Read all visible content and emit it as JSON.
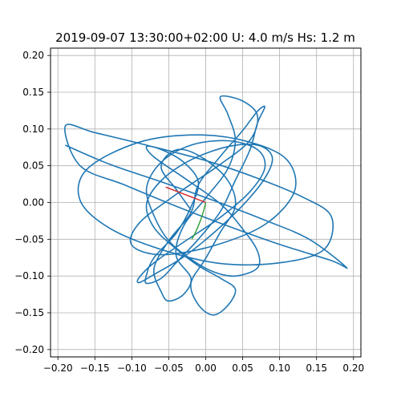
{
  "chart_data": {
    "type": "line",
    "title": "2019-09-07 13:30:00+02:00 U: 4.0 m/s Hs: 1.2 m",
    "xlim": [
      -0.21,
      0.21
    ],
    "ylim": [
      -0.21,
      0.21
    ],
    "grid": true,
    "x_ticks": [
      -0.2,
      -0.15,
      -0.1,
      -0.05,
      0.0,
      0.05,
      0.1,
      0.15,
      0.2
    ],
    "y_ticks": [
      -0.2,
      -0.15,
      -0.1,
      -0.05,
      0.0,
      0.05,
      0.1,
      0.15,
      0.2
    ],
    "x_tick_labels": [
      "−0.20",
      "−0.15",
      "−0.10",
      "−0.05",
      "0.00",
      "0.05",
      "0.10",
      "0.15",
      "0.20"
    ],
    "y_tick_labels": [
      "−0.20",
      "−0.15",
      "−0.10",
      "−0.05",
      "0.00",
      "0.05",
      "0.10",
      "0.15",
      "0.20"
    ],
    "series": [
      {
        "color": "#1f77b4",
        "x": [
          -0.19,
          -0.13,
          -0.06,
          0.01,
          0.08,
          0.14,
          0.19,
          0.17,
          0.1,
          0.03,
          -0.04,
          -0.11,
          -0.17,
          -0.19,
          -0.15,
          -0.08,
          0.0,
          0.07,
          0.13,
          0.17,
          0.16,
          0.1,
          0.02,
          -0.06,
          -0.13,
          -0.17,
          -0.16,
          -0.09,
          -0.01,
          0.06,
          0.11,
          0.12,
          0.08,
          0.01,
          -0.06,
          -0.1,
          -0.09,
          -0.04,
          0.02,
          0.06,
          0.07,
          0.05,
          0.02,
          0.03,
          0.04,
          0.03,
          0.0,
          -0.03,
          -0.04,
          -0.02,
          -0.03,
          -0.05,
          -0.06,
          -0.07,
          -0.05,
          -0.02,
          -0.01,
          0.02,
          0.05,
          0.07,
          0.08,
          0.07,
          0.06,
          0.04,
          0.02,
          -0.01,
          -0.04,
          -0.06,
          -0.08,
          -0.08,
          -0.07,
          -0.04,
          -0.02,
          -0.01,
          -0.03,
          -0.06,
          -0.08,
          -0.07,
          -0.03,
          0.02,
          0.05,
          0.07,
          0.07,
          0.04,
          0.01,
          -0.02,
          -0.05,
          -0.07,
          -0.08,
          -0.06,
          -0.02,
          0.03,
          0.07,
          0.08,
          0.06,
          0.02,
          -0.03,
          -0.07,
          -0.09,
          -0.09,
          -0.07,
          -0.03,
          0.01,
          0.05,
          0.08,
          0.09,
          0.07,
          0.03,
          -0.02,
          -0.06,
          -0.08,
          -0.07,
          -0.04,
          -0.01,
          0.02,
          0.04,
          0.03,
          0.01,
          -0.01,
          -0.02,
          0.0,
          0.02,
          0.04,
          0.03,
          0.0,
          -0.03,
          -0.05,
          -0.06,
          -0.04,
          -0.02
        ],
        "y": [
          0.078,
          0.052,
          0.028,
          0.003,
          -0.024,
          -0.05,
          -0.088,
          -0.079,
          -0.057,
          -0.032,
          -0.005,
          0.024,
          0.05,
          0.104,
          0.095,
          0.078,
          0.057,
          0.033,
          0.008,
          -0.019,
          -0.064,
          -0.082,
          -0.083,
          -0.064,
          -0.035,
          0.003,
          0.046,
          0.082,
          0.092,
          0.082,
          0.058,
          0.015,
          -0.03,
          -0.059,
          -0.071,
          -0.058,
          -0.028,
          0.011,
          0.052,
          0.085,
          0.118,
          0.138,
          0.144,
          0.12,
          0.085,
          0.046,
          0.006,
          -0.032,
          -0.072,
          -0.103,
          -0.125,
          -0.134,
          -0.122,
          -0.09,
          -0.052,
          -0.014,
          0.024,
          0.063,
          0.098,
          0.124,
          0.13,
          0.108,
          0.072,
          0.03,
          -0.012,
          -0.05,
          -0.082,
          -0.103,
          -0.11,
          -0.098,
          -0.075,
          -0.042,
          -0.006,
          0.028,
          0.055,
          0.072,
          0.076,
          0.062,
          0.034,
          -0.002,
          -0.036,
          -0.066,
          -0.089,
          -0.1,
          -0.094,
          -0.077,
          -0.052,
          -0.018,
          0.02,
          0.055,
          0.078,
          0.084,
          0.072,
          0.047,
          0.015,
          -0.02,
          -0.054,
          -0.082,
          -0.102,
          -0.109,
          -0.098,
          -0.074,
          -0.042,
          -0.004,
          0.033,
          0.062,
          0.078,
          0.076,
          0.058,
          0.03,
          -0.002,
          -0.034,
          -0.063,
          -0.086,
          -0.103,
          -0.118,
          -0.14,
          -0.153,
          -0.139,
          -0.11,
          -0.076,
          -0.04,
          -0.005,
          0.03,
          0.058,
          0.072,
          0.066,
          0.046,
          0.018,
          -0.01
        ]
      },
      {
        "color": "#d62728",
        "x": [
          0.0,
          -0.054
        ],
        "y": [
          0.0,
          0.021
        ]
      },
      {
        "color": "#2ca02c",
        "x": [
          0.0,
          -0.003,
          -0.007,
          -0.011,
          -0.015,
          -0.019
        ],
        "y": [
          0.0,
          -0.012,
          -0.024,
          -0.034,
          -0.043,
          -0.05
        ]
      }
    ]
  }
}
